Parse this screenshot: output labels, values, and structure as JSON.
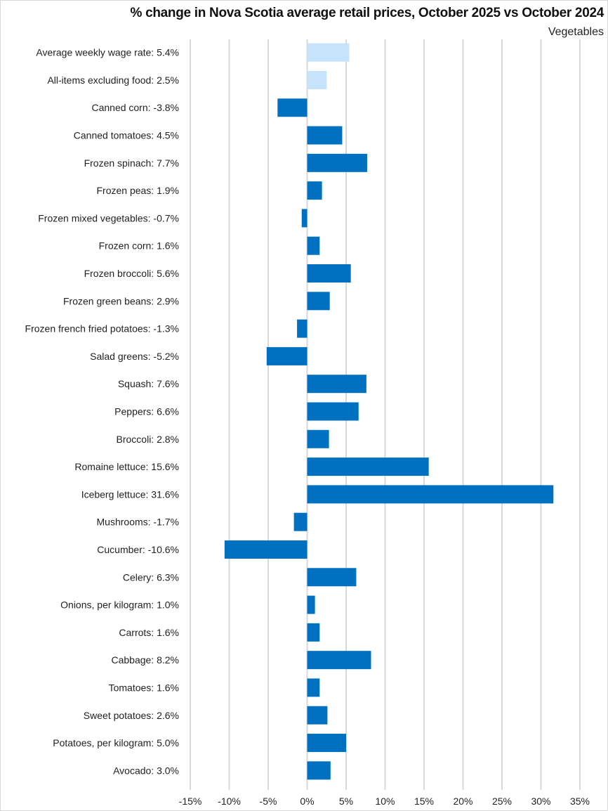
{
  "chart_data": {
    "type": "bar",
    "orientation": "horizontal",
    "title": "% change in Nova Scotia average retail prices, October 2025 vs October 2024",
    "subtitle": "Vegetables",
    "xlabel": "",
    "ylabel": "",
    "xlim": [
      -15,
      35
    ],
    "x_ticks": [
      -15,
      -10,
      -5,
      0,
      5,
      10,
      15,
      20,
      25,
      30,
      35
    ],
    "x_tick_labels": [
      "-15%",
      "-10%",
      "-5%",
      "0%",
      "5%",
      "10%",
      "15%",
      "20%",
      "25%",
      "30%",
      "35%"
    ],
    "grid": "vertical",
    "legend": "none",
    "colors": {
      "benchmark": "#C5E3FA",
      "item": "#0070C0",
      "grid": "#D9D9D9"
    },
    "categories": [
      "Average weekly wage rate: 5.4%",
      "All-items excluding food: 2.5%",
      "Canned corn: -3.8%",
      "Canned tomatoes: 4.5%",
      "Frozen spinach: 7.7%",
      "Frozen peas: 1.9%",
      "Frozen mixed vegetables: -0.7%",
      "Frozen corn: 1.6%",
      "Frozen broccoli: 5.6%",
      "Frozen green beans: 2.9%",
      "Frozen french fried potatoes: -1.3%",
      "Salad greens: -5.2%",
      "Squash: 7.6%",
      "Peppers: 6.6%",
      "Broccoli: 2.8%",
      "Romaine lettuce: 15.6%",
      "Iceberg lettuce: 31.6%",
      "Mushrooms: -1.7%",
      "Cucumber: -10.6%",
      "Celery: 6.3%",
      "Onions, per kilogram: 1.0%",
      "Carrots: 1.6%",
      "Cabbage: 8.2%",
      "Tomatoes: 1.6%",
      "Sweet potatoes: 2.6%",
      "Potatoes, per kilogram: 5.0%",
      "Avocado: 3.0%"
    ],
    "values": [
      5.4,
      2.5,
      -3.8,
      4.5,
      7.7,
      1.9,
      -0.7,
      1.6,
      5.6,
      2.9,
      -1.3,
      -5.2,
      7.6,
      6.6,
      2.8,
      15.6,
      31.6,
      -1.7,
      -10.6,
      6.3,
      1.0,
      1.6,
      8.2,
      1.6,
      2.6,
      5.0,
      3.0
    ],
    "series_kind": [
      "benchmark",
      "benchmark",
      "item",
      "item",
      "item",
      "item",
      "item",
      "item",
      "item",
      "item",
      "item",
      "item",
      "item",
      "item",
      "item",
      "item",
      "item",
      "item",
      "item",
      "item",
      "item",
      "item",
      "item",
      "item",
      "item",
      "item",
      "item"
    ]
  }
}
